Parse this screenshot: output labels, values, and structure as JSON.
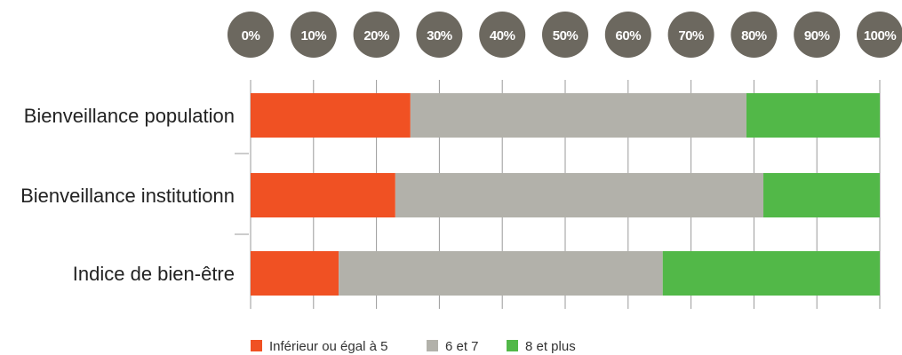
{
  "chart_data": {
    "type": "bar",
    "orientation": "horizontal",
    "stacked": true,
    "categories": [
      "Bienveillance population",
      "Bienveillance institutionn",
      "Indice de bien-être"
    ],
    "series": [
      {
        "name": "Inférieur ou égal à 5",
        "color": "#f05123",
        "values": [
          25.4,
          23.0,
          14.0
        ]
      },
      {
        "name": "6 et 7",
        "color": "#b2b1aa",
        "values": [
          53.4,
          58.5,
          51.5
        ]
      },
      {
        "name": "8 et plus",
        "color": "#52b848",
        "values": [
          21.2,
          18.5,
          34.5
        ]
      }
    ],
    "x_ticks": [
      "0%",
      "10%",
      "20%",
      "30%",
      "40%",
      "50%",
      "60%",
      "70%",
      "80%",
      "90%",
      "100%"
    ],
    "xlim": [
      0,
      100
    ],
    "title": "",
    "xlabel": "",
    "ylabel": "",
    "grid": true,
    "legend_position": "bottom",
    "tick_circle_color": "#6c685f"
  }
}
